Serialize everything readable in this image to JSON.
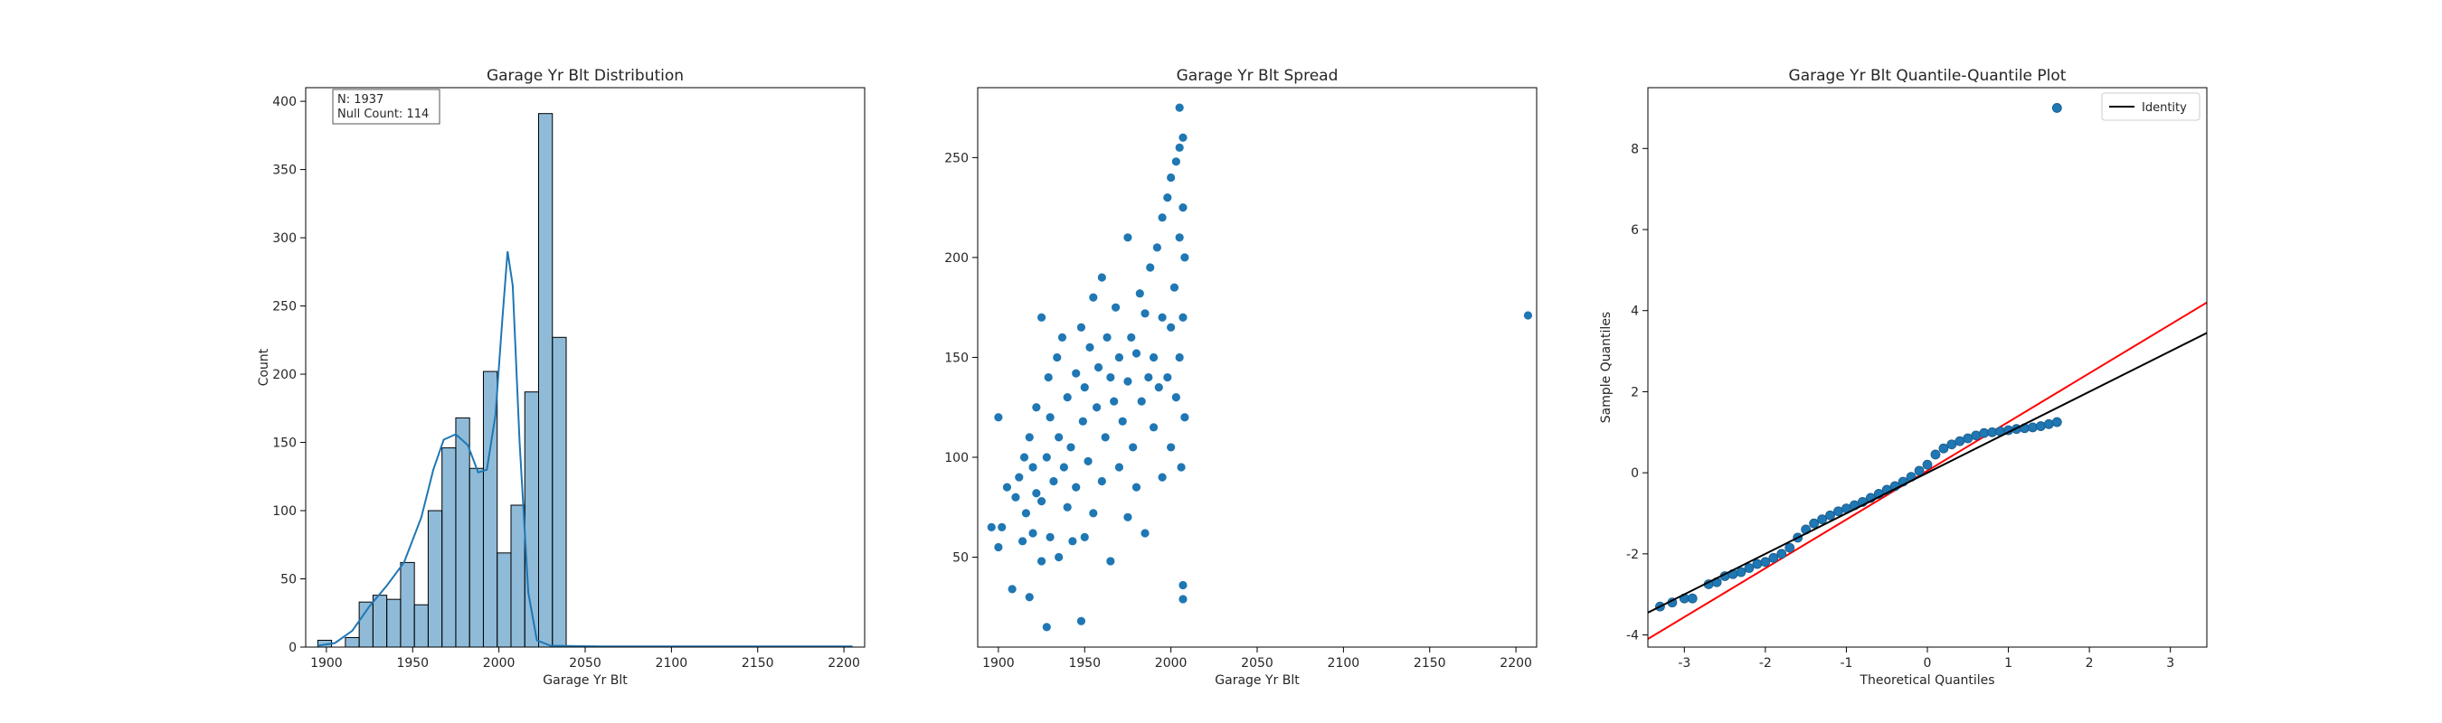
{
  "chart_data": [
    {
      "type": "bar",
      "title": "Garage Yr Blt Distribution",
      "xlabel": "Garage Yr Blt",
      "ylabel": "Count",
      "xlim": [
        1888,
        2212
      ],
      "ylim": [
        0,
        410
      ],
      "xticks": [
        1900,
        1950,
        2000,
        2050,
        2100,
        2150,
        2200
      ],
      "yticks": [
        0,
        50,
        100,
        150,
        200,
        250,
        300,
        350,
        400
      ],
      "bins": [
        {
          "x0": 1895,
          "x1": 1903,
          "value": 5
        },
        {
          "x0": 1903,
          "x1": 1911,
          "value": 0
        },
        {
          "x0": 1911,
          "x1": 1919,
          "value": 7
        },
        {
          "x0": 1919,
          "x1": 1927,
          "value": 33
        },
        {
          "x0": 1927,
          "x1": 1935,
          "value": 38
        },
        {
          "x0": 1935,
          "x1": 1943,
          "value": 35
        },
        {
          "x0": 1943,
          "x1": 1951,
          "value": 62
        },
        {
          "x0": 1951,
          "x1": 1959,
          "value": 31
        },
        {
          "x0": 1959,
          "x1": 1967,
          "value": 100
        },
        {
          "x0": 1967,
          "x1": 1975,
          "value": 146
        },
        {
          "x0": 1975,
          "x1": 1983,
          "value": 168
        },
        {
          "x0": 1983,
          "x1": 1991,
          "value": 131
        },
        {
          "x0": 1991,
          "x1": 1999,
          "value": 202
        },
        {
          "x0": 1999,
          "x1": 2007,
          "value": 69
        },
        {
          "x0": 2007,
          "x1": 2015,
          "value": 104
        },
        {
          "x0": 2015,
          "x1": 2023,
          "value": 187
        },
        {
          "x0": 2023,
          "x1": 2031,
          "value": 391
        },
        {
          "x0": 2031,
          "x1": 2039,
          "value": 227
        }
      ],
      "kde": [
        [
          1895,
          1
        ],
        [
          1905,
          3
        ],
        [
          1915,
          12
        ],
        [
          1925,
          30
        ],
        [
          1935,
          45
        ],
        [
          1945,
          62
        ],
        [
          1955,
          95
        ],
        [
          1962,
          130
        ],
        [
          1968,
          152
        ],
        [
          1975,
          156
        ],
        [
          1982,
          148
        ],
        [
          1988,
          128
        ],
        [
          1993,
          130
        ],
        [
          1998,
          170
        ],
        [
          2002,
          240
        ],
        [
          2005,
          290
        ],
        [
          2008,
          265
        ],
        [
          2012,
          150
        ],
        [
          2017,
          40
        ],
        [
          2022,
          5
        ],
        [
          2030,
          1
        ],
        [
          2060,
          0.5
        ],
        [
          2205,
          0.5
        ]
      ],
      "stats_box": {
        "n": "N: 1937",
        "null_count": "Null Count: 114"
      },
      "color": "#1f77b4"
    },
    {
      "type": "scatter",
      "title": "Garage Yr Blt Spread",
      "xlabel": "Garage Yr Blt",
      "ylabel": "",
      "xlim": [
        1888,
        2212
      ],
      "ylim": [
        5,
        285
      ],
      "xticks": [
        1900,
        1950,
        2000,
        2050,
        2100,
        2150,
        2200
      ],
      "yticks": [
        50,
        100,
        150,
        200,
        250
      ],
      "points": [
        [
          1896,
          65
        ],
        [
          1900,
          120
        ],
        [
          1900,
          55
        ],
        [
          1902,
          65
        ],
        [
          1905,
          85
        ],
        [
          1908,
          34
        ],
        [
          1910,
          80
        ],
        [
          1912,
          90
        ],
        [
          1914,
          58
        ],
        [
          1915,
          100
        ],
        [
          1916,
          72
        ],
        [
          1918,
          30
        ],
        [
          1918,
          110
        ],
        [
          1920,
          62
        ],
        [
          1920,
          95
        ],
        [
          1922,
          82
        ],
        [
          1922,
          125
        ],
        [
          1925,
          170
        ],
        [
          1925,
          48
        ],
        [
          1925,
          78
        ],
        [
          1928,
          15
        ],
        [
          1928,
          100
        ],
        [
          1929,
          140
        ],
        [
          1930,
          60
        ],
        [
          1930,
          120
        ],
        [
          1932,
          88
        ],
        [
          1934,
          150
        ],
        [
          1935,
          50
        ],
        [
          1935,
          110
        ],
        [
          1937,
          160
        ],
        [
          1938,
          95
        ],
        [
          1940,
          130
        ],
        [
          1940,
          75
        ],
        [
          1942,
          105
        ],
        [
          1943,
          58
        ],
        [
          1945,
          142
        ],
        [
          1945,
          85
        ],
        [
          1948,
          165
        ],
        [
          1948,
          18
        ],
        [
          1949,
          118
        ],
        [
          1950,
          60
        ],
        [
          1950,
          135
        ],
        [
          1952,
          98
        ],
        [
          1953,
          155
        ],
        [
          1955,
          180
        ],
        [
          1955,
          72
        ],
        [
          1957,
          125
        ],
        [
          1958,
          145
        ],
        [
          1960,
          88
        ],
        [
          1960,
          190
        ],
        [
          1962,
          110
        ],
        [
          1963,
          160
        ],
        [
          1965,
          48
        ],
        [
          1965,
          140
        ],
        [
          1967,
          128
        ],
        [
          1968,
          175
        ],
        [
          1970,
          95
        ],
        [
          1970,
          150
        ],
        [
          1972,
          118
        ],
        [
          1975,
          210
        ],
        [
          1975,
          70
        ],
        [
          1975,
          138
        ],
        [
          1977,
          160
        ],
        [
          1978,
          105
        ],
        [
          1980,
          152
        ],
        [
          1980,
          85
        ],
        [
          1982,
          182
        ],
        [
          1983,
          128
        ],
        [
          1985,
          172
        ],
        [
          1985,
          62
        ],
        [
          1987,
          140
        ],
        [
          1988,
          195
        ],
        [
          1990,
          115
        ],
        [
          1990,
          150
        ],
        [
          1992,
          205
        ],
        [
          1993,
          135
        ],
        [
          1995,
          220
        ],
        [
          1995,
          170
        ],
        [
          1995,
          90
        ],
        [
          1998,
          140
        ],
        [
          1998,
          230
        ],
        [
          2000,
          165
        ],
        [
          2000,
          240
        ],
        [
          2000,
          105
        ],
        [
          2002,
          185
        ],
        [
          2003,
          248
        ],
        [
          2003,
          130
        ],
        [
          2005,
          210
        ],
        [
          2005,
          275
        ],
        [
          2005,
          255
        ],
        [
          2005,
          150
        ],
        [
          2006,
          95
        ],
        [
          2007,
          225
        ],
        [
          2007,
          260
        ],
        [
          2007,
          36
        ],
        [
          2007,
          29
        ],
        [
          2007,
          170
        ],
        [
          2008,
          120
        ],
        [
          2008,
          200
        ],
        [
          2207,
          171
        ]
      ],
      "color": "#1f77b4"
    },
    {
      "type": "scatter",
      "title": "Garage Yr Blt Quantile-Quantile Plot",
      "xlabel": "Theoretical Quantiles",
      "ylabel": "Sample Quantiles",
      "xlim": [
        -3.45,
        3.45
      ],
      "ylim": [
        -4.3,
        9.5
      ],
      "xticks": [
        -3,
        -2,
        -1,
        0,
        1,
        2,
        3
      ],
      "yticks": [
        -4,
        -2,
        0,
        2,
        4,
        6,
        8
      ],
      "legend": {
        "label": "Identity",
        "position": "top-right"
      },
      "points": [
        [
          -3.3,
          -3.3
        ],
        [
          -3.15,
          -3.2
        ],
        [
          -3.0,
          -3.1
        ],
        [
          -2.9,
          -3.1
        ],
        [
          -2.7,
          -2.75
        ],
        [
          -2.6,
          -2.7
        ],
        [
          -2.5,
          -2.55
        ],
        [
          -2.4,
          -2.5
        ],
        [
          -2.3,
          -2.45
        ],
        [
          -2.2,
          -2.35
        ],
        [
          -2.1,
          -2.25
        ],
        [
          -2.0,
          -2.2
        ],
        [
          -1.9,
          -2.1
        ],
        [
          -1.8,
          -2.0
        ],
        [
          -1.7,
          -1.85
        ],
        [
          -1.6,
          -1.6
        ],
        [
          -1.5,
          -1.4
        ],
        [
          -1.4,
          -1.25
        ],
        [
          -1.3,
          -1.15
        ],
        [
          -1.2,
          -1.05
        ],
        [
          -1.1,
          -0.95
        ],
        [
          -1.0,
          -0.88
        ],
        [
          -0.9,
          -0.8
        ],
        [
          -0.8,
          -0.72
        ],
        [
          -0.7,
          -0.62
        ],
        [
          -0.6,
          -0.52
        ],
        [
          -0.5,
          -0.42
        ],
        [
          -0.4,
          -0.33
        ],
        [
          -0.3,
          -0.22
        ],
        [
          -0.2,
          -0.1
        ],
        [
          -0.1,
          0.05
        ],
        [
          0.0,
          0.2
        ],
        [
          0.1,
          0.45
        ],
        [
          0.2,
          0.6
        ],
        [
          0.3,
          0.7
        ],
        [
          0.4,
          0.78
        ],
        [
          0.5,
          0.85
        ],
        [
          0.6,
          0.92
        ],
        [
          0.7,
          0.98
        ],
        [
          0.8,
          1.0
        ],
        [
          0.9,
          1.02
        ],
        [
          1.0,
          1.05
        ],
        [
          1.1,
          1.08
        ],
        [
          1.2,
          1.1
        ],
        [
          1.3,
          1.12
        ],
        [
          1.4,
          1.15
        ],
        [
          1.5,
          1.2
        ],
        [
          1.6,
          1.25
        ],
        [
          1.6,
          9.0
        ]
      ],
      "identity_line": [
        [
          -3.45,
          -3.45
        ],
        [
          3.45,
          3.45
        ]
      ],
      "fit_line": [
        [
          -3.45,
          -4.1
        ],
        [
          3.45,
          4.2
        ]
      ],
      "color": "#1f77b4",
      "identity_color": "#000000",
      "fit_color": "#ff0000"
    }
  ]
}
